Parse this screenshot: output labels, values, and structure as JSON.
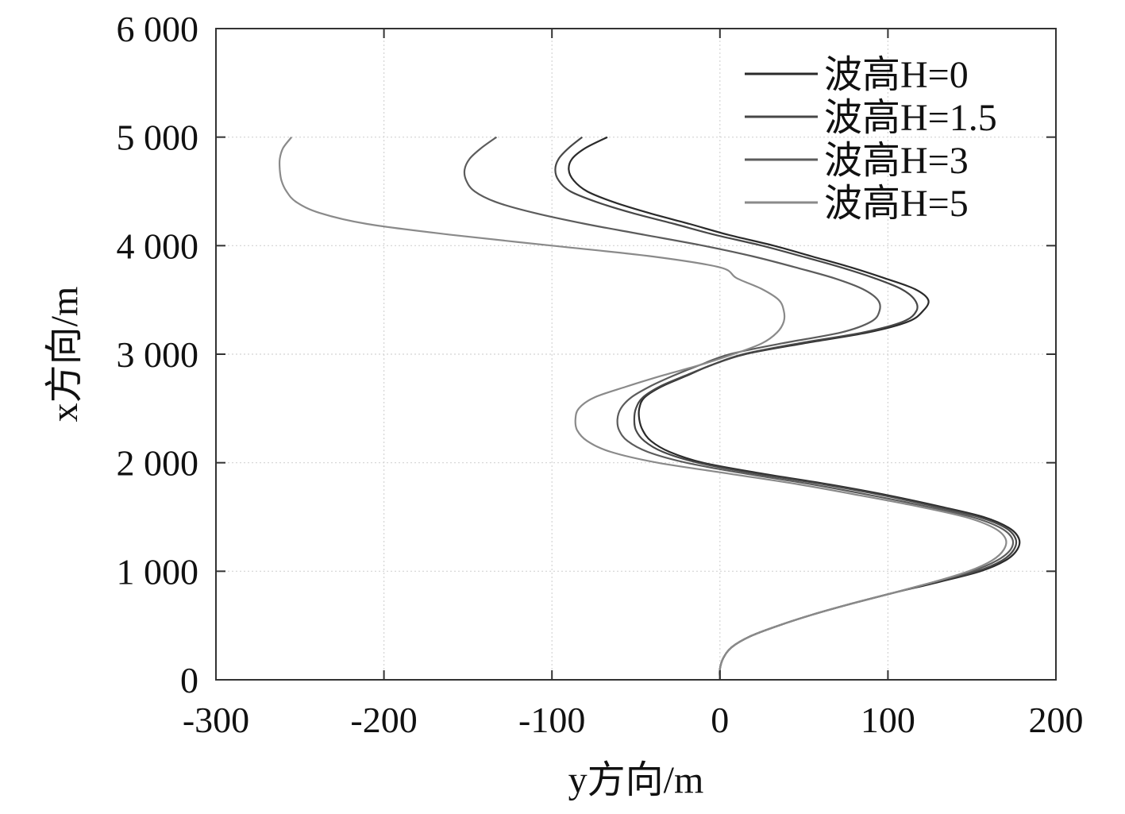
{
  "chart_data": {
    "type": "line",
    "title": "",
    "xlabel": "y方向/m",
    "ylabel": "x方向/m",
    "xlim": [
      -300,
      200
    ],
    "ylim": [
      0,
      6000
    ],
    "x_ticks": [
      {
        "value": -300,
        "label": "-300"
      },
      {
        "value": -200,
        "label": "-200"
      },
      {
        "value": -100,
        "label": "-100"
      },
      {
        "value": 0,
        "label": "0"
      },
      {
        "value": 100,
        "label": "100"
      },
      {
        "value": 200,
        "label": "200"
      }
    ],
    "y_ticks": [
      {
        "value": 0,
        "label": "0"
      },
      {
        "value": 1000,
        "label": "1 000"
      },
      {
        "value": 2000,
        "label": "2 000"
      },
      {
        "value": 3000,
        "label": "3 000"
      },
      {
        "value": 4000,
        "label": "4 000"
      },
      {
        "value": 5000,
        "label": "5 000"
      },
      {
        "value": 6000,
        "label": "6 000"
      }
    ],
    "grid": true,
    "legend_position": "top-right",
    "series": [
      {
        "name": "波高H=0",
        "color": "#2a2a2a",
        "points": [
          [
            0,
            0
          ],
          [
            0,
            100
          ],
          [
            2,
            200
          ],
          [
            7,
            300
          ],
          [
            18,
            400
          ],
          [
            35,
            500
          ],
          [
            55,
            600
          ],
          [
            78,
            700
          ],
          [
            103,
            800
          ],
          [
            130,
            900
          ],
          [
            155,
            1000
          ],
          [
            170,
            1100
          ],
          [
            177,
            1200
          ],
          [
            178,
            1300
          ],
          [
            172,
            1400
          ],
          [
            157,
            1500
          ],
          [
            130,
            1600
          ],
          [
            100,
            1700
          ],
          [
            65,
            1800
          ],
          [
            25,
            1900
          ],
          [
            -10,
            2000
          ],
          [
            -30,
            2100
          ],
          [
            -41,
            2200
          ],
          [
            -46,
            2300
          ],
          [
            -48,
            2400
          ],
          [
            -48,
            2500
          ],
          [
            -45,
            2600
          ],
          [
            -35,
            2700
          ],
          [
            -20,
            2800
          ],
          [
            -5,
            2900
          ],
          [
            15,
            3000
          ],
          [
            50,
            3100
          ],
          [
            88,
            3200
          ],
          [
            112,
            3300
          ],
          [
            121,
            3400
          ],
          [
            124,
            3500
          ],
          [
            116,
            3600
          ],
          [
            98,
            3700
          ],
          [
            78,
            3800
          ],
          [
            55,
            3900
          ],
          [
            32,
            4000
          ],
          [
            5,
            4100
          ],
          [
            -18,
            4200
          ],
          [
            -42,
            4300
          ],
          [
            -63,
            4400
          ],
          [
            -79,
            4500
          ],
          [
            -87,
            4600
          ],
          [
            -90,
            4700
          ],
          [
            -88,
            4800
          ],
          [
            -80,
            4900
          ],
          [
            -67,
            5000
          ]
        ]
      },
      {
        "name": "波高H=1.5",
        "color": "#474747",
        "points": [
          [
            0,
            0
          ],
          [
            0,
            100
          ],
          [
            2,
            200
          ],
          [
            7,
            300
          ],
          [
            18,
            400
          ],
          [
            35,
            500
          ],
          [
            55,
            600
          ],
          [
            78,
            700
          ],
          [
            103,
            800
          ],
          [
            128,
            900
          ],
          [
            153,
            1000
          ],
          [
            168,
            1100
          ],
          [
            175,
            1200
          ],
          [
            176,
            1300
          ],
          [
            170,
            1400
          ],
          [
            154,
            1500
          ],
          [
            127,
            1600
          ],
          [
            97,
            1700
          ],
          [
            62,
            1800
          ],
          [
            21,
            1900
          ],
          [
            -13,
            2000
          ],
          [
            -34,
            2100
          ],
          [
            -45,
            2200
          ],
          [
            -50,
            2300
          ],
          [
            -51,
            2400
          ],
          [
            -50,
            2500
          ],
          [
            -46,
            2600
          ],
          [
            -36,
            2700
          ],
          [
            -21,
            2800
          ],
          [
            -5,
            2900
          ],
          [
            14,
            3000
          ],
          [
            47,
            3100
          ],
          [
            85,
            3200
          ],
          [
            109,
            3300
          ],
          [
            117,
            3400
          ],
          [
            116,
            3500
          ],
          [
            108,
            3600
          ],
          [
            92,
            3700
          ],
          [
            72,
            3800
          ],
          [
            49,
            3900
          ],
          [
            25,
            4000
          ],
          [
            -3,
            4100
          ],
          [
            -27,
            4200
          ],
          [
            -52,
            4300
          ],
          [
            -73,
            4400
          ],
          [
            -89,
            4500
          ],
          [
            -96,
            4600
          ],
          [
            -98,
            4700
          ],
          [
            -96,
            4800
          ],
          [
            -90,
            4900
          ],
          [
            -82,
            5000
          ]
        ]
      },
      {
        "name": "波高H=3",
        "color": "#5c5c5c",
        "points": [
          [
            0,
            0
          ],
          [
            0,
            100
          ],
          [
            2,
            200
          ],
          [
            7,
            300
          ],
          [
            18,
            400
          ],
          [
            35,
            500
          ],
          [
            55,
            600
          ],
          [
            78,
            700
          ],
          [
            103,
            800
          ],
          [
            127,
            900
          ],
          [
            150,
            1000
          ],
          [
            165,
            1100
          ],
          [
            173,
            1200
          ],
          [
            174,
            1300
          ],
          [
            167,
            1400
          ],
          [
            150,
            1500
          ],
          [
            122,
            1600
          ],
          [
            90,
            1700
          ],
          [
            55,
            1800
          ],
          [
            15,
            1900
          ],
          [
            -20,
            2000
          ],
          [
            -43,
            2100
          ],
          [
            -55,
            2200
          ],
          [
            -60,
            2300
          ],
          [
            -61,
            2400
          ],
          [
            -59,
            2500
          ],
          [
            -53,
            2600
          ],
          [
            -42,
            2700
          ],
          [
            -28,
            2800
          ],
          [
            -12,
            2900
          ],
          [
            6,
            3000
          ],
          [
            37,
            3100
          ],
          [
            72,
            3200
          ],
          [
            90,
            3300
          ],
          [
            95,
            3400
          ],
          [
            94,
            3500
          ],
          [
            85,
            3600
          ],
          [
            68,
            3700
          ],
          [
            45,
            3800
          ],
          [
            20,
            3900
          ],
          [
            -10,
            4000
          ],
          [
            -45,
            4100
          ],
          [
            -80,
            4200
          ],
          [
            -110,
            4300
          ],
          [
            -133,
            4400
          ],
          [
            -146,
            4500
          ],
          [
            -151,
            4600
          ],
          [
            -152,
            4700
          ],
          [
            -149,
            4800
          ],
          [
            -142,
            4900
          ],
          [
            -133,
            5000
          ]
        ]
      },
      {
        "name": "波高H=5",
        "color": "#8a8a8a",
        "points": [
          [
            0,
            0
          ],
          [
            0,
            100
          ],
          [
            2,
            200
          ],
          [
            7,
            300
          ],
          [
            18,
            400
          ],
          [
            35,
            500
          ],
          [
            55,
            600
          ],
          [
            78,
            700
          ],
          [
            103,
            800
          ],
          [
            127,
            900
          ],
          [
            148,
            1000
          ],
          [
            162,
            1100
          ],
          [
            169,
            1200
          ],
          [
            170,
            1300
          ],
          [
            163,
            1400
          ],
          [
            146,
            1500
          ],
          [
            117,
            1600
          ],
          [
            83,
            1700
          ],
          [
            47,
            1800
          ],
          [
            5,
            1900
          ],
          [
            -37,
            2000
          ],
          [
            -65,
            2100
          ],
          [
            -79,
            2200
          ],
          [
            -85,
            2300
          ],
          [
            -86,
            2400
          ],
          [
            -84,
            2500
          ],
          [
            -75,
            2600
          ],
          [
            -56,
            2700
          ],
          [
            -35,
            2800
          ],
          [
            -12,
            2900
          ],
          [
            8,
            3000
          ],
          [
            25,
            3100
          ],
          [
            34,
            3200
          ],
          [
            38,
            3300
          ],
          [
            38,
            3400
          ],
          [
            35,
            3500
          ],
          [
            25,
            3600
          ],
          [
            10,
            3700
          ],
          [
            0,
            3800
          ],
          [
            -40,
            3900
          ],
          [
            -100,
            4000
          ],
          [
            -160,
            4100
          ],
          [
            -210,
            4200
          ],
          [
            -238,
            4300
          ],
          [
            -252,
            4400
          ],
          [
            -258,
            4500
          ],
          [
            -261,
            4600
          ],
          [
            -262,
            4700
          ],
          [
            -262,
            4800
          ],
          [
            -260,
            4900
          ],
          [
            -255,
            5000
          ]
        ]
      }
    ]
  }
}
